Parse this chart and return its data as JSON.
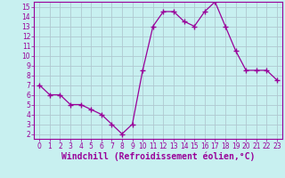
{
  "x": [
    0,
    1,
    2,
    3,
    4,
    5,
    6,
    7,
    8,
    9,
    10,
    11,
    12,
    13,
    14,
    15,
    16,
    17,
    18,
    19,
    20,
    21,
    22,
    23
  ],
  "y": [
    7.0,
    6.0,
    6.0,
    5.0,
    5.0,
    4.5,
    4.0,
    3.0,
    2.0,
    3.0,
    8.5,
    13.0,
    14.5,
    14.5,
    13.5,
    13.0,
    14.5,
    15.5,
    13.0,
    10.5,
    8.5,
    8.5,
    8.5,
    7.5
  ],
  "line_color": "#990099",
  "marker": "+",
  "marker_size": 4,
  "bg_color": "#c8f0f0",
  "grid_color": "#b0c8d0",
  "xlabel": "Windchill (Refroidissement éolien,°C)",
  "xlim": [
    -0.5,
    23.5
  ],
  "ylim": [
    1.5,
    15.5
  ],
  "yticks": [
    2,
    3,
    4,
    5,
    6,
    7,
    8,
    9,
    10,
    11,
    12,
    13,
    14,
    15
  ],
  "xticks": [
    0,
    1,
    2,
    3,
    4,
    5,
    6,
    7,
    8,
    9,
    10,
    11,
    12,
    13,
    14,
    15,
    16,
    17,
    18,
    19,
    20,
    21,
    22,
    23
  ],
  "tick_color": "#990099",
  "label_color": "#990099",
  "label_fontsize": 7,
  "tick_fontsize": 5.5
}
